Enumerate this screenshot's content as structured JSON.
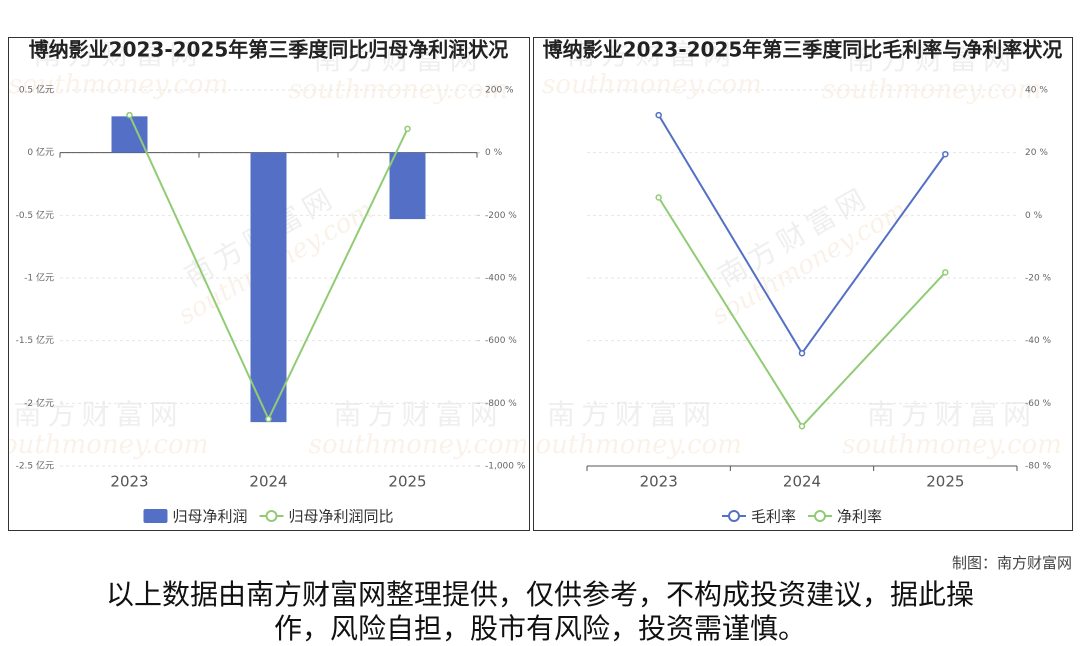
{
  "chart_data": [
    {
      "type": "bar",
      "title": "博纳影业2023-2025年第三季度同比归母净利润状况",
      "categories": [
        "2023",
        "2024",
        "2025"
      ],
      "series": [
        {
          "name": "归母净利润",
          "type": "bar",
          "color": "#5470c6",
          "values": [
            0.29,
            -2.15,
            -0.53
          ]
        },
        {
          "name": "归母净利润同比",
          "type": "line",
          "axis": "y2",
          "color": "#91cc75",
          "values": [
            120,
            -850,
            76
          ]
        }
      ],
      "ylim": [
        -2.5,
        0.5
      ],
      "yticks": [
        {
          "value": 0.5,
          "label": "0.5 亿元"
        },
        {
          "value": 0,
          "label": "0 亿元"
        },
        {
          "value": -0.5,
          "label": "-0.5 亿元"
        },
        {
          "value": -1,
          "label": "-1 亿元"
        },
        {
          "value": -1.5,
          "label": "-1.5 亿元"
        },
        {
          "value": -2,
          "label": "-2 亿元"
        },
        {
          "value": -2.5,
          "label": "-2.5 亿元"
        }
      ],
      "y2lim": [
        -1000,
        200
      ],
      "y2ticks": [
        {
          "value": 200,
          "label": "200 %"
        },
        {
          "value": 0,
          "label": "0 %"
        },
        {
          "value": -200,
          "label": "-200 %"
        },
        {
          "value": -400,
          "label": "-400 %"
        },
        {
          "value": -600,
          "label": "-600 %"
        },
        {
          "value": -800,
          "label": "-800 %"
        },
        {
          "value": -1000,
          "label": "-1,000 %"
        }
      ],
      "grid": true,
      "legend": "bottom"
    },
    {
      "type": "line",
      "title": "博纳影业2023-2025年第三季度同比毛利率与净利率状况",
      "categories": [
        "2023",
        "2024",
        "2025"
      ],
      "series": [
        {
          "name": "毛利率",
          "type": "line",
          "color": "#5470c6",
          "values": [
            32,
            -44,
            19.5
          ]
        },
        {
          "name": "净利率",
          "type": "line",
          "color": "#91cc75",
          "values": [
            5.7,
            -67.3,
            -18.2
          ]
        }
      ],
      "ylim": [
        -80,
        40
      ],
      "yticks": [
        {
          "value": 40,
          "label": "40 %"
        },
        {
          "value": 20,
          "label": "20 %"
        },
        {
          "value": 0,
          "label": "0 %"
        },
        {
          "value": -20,
          "label": "-20 %"
        },
        {
          "value": -40,
          "label": "-40 %"
        },
        {
          "value": -60,
          "label": "-60 %"
        },
        {
          "value": -80,
          "label": "-80 %"
        }
      ],
      "y_axis_position": "right",
      "grid": true,
      "legend": "bottom"
    }
  ],
  "watermark": [
    "南方财富网",
    "southmoney.com"
  ],
  "footer": {
    "credit": "制图：南方财富网",
    "disclaimer": "以上数据由南方财富网整理提供，仅供参考，不构成投资建议，据此操作，风险自担，股市有风险，投资需谨慎。"
  }
}
